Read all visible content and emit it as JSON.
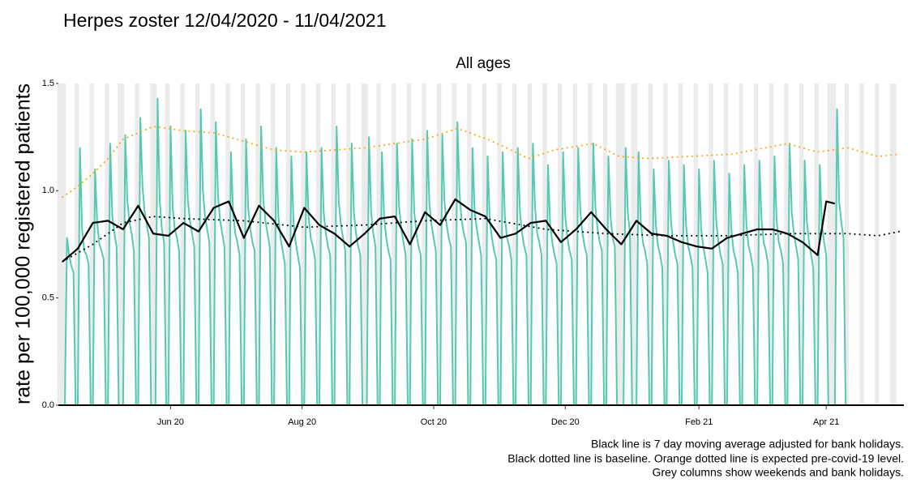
{
  "chart_data": {
    "type": "line",
    "title": "Herpes zoster 12/04/2020 - 11/04/2021",
    "subtitle": "All ages",
    "y_label": "rate per 100,000 registered patients",
    "notes": [
      "Black line is 7 day moving average adjusted for bank holidays.",
      "Black dotted line is baseline. Orange dotted line is expected pre-covid-19 level.",
      "Grey columns show weekends and bank holidays."
    ],
    "xlim": [
      -2,
      390
    ],
    "xticks": [
      {
        "value": 50,
        "label": "Jun 20"
      },
      {
        "value": 111,
        "label": "Aug 20"
      },
      {
        "value": 172,
        "label": "Oct 20"
      },
      {
        "value": 233,
        "label": "Dec 20"
      },
      {
        "value": 295,
        "label": "Feb 21"
      },
      {
        "value": 354,
        "label": "Apr 21"
      }
    ],
    "ylim": [
      0,
      1.5
    ],
    "yticks": [
      {
        "value": 0,
        "label": "0.0"
      },
      0.5,
      {
        "value": 1,
        "label": "1.0"
      },
      1.5
    ],
    "shaded_color": "#ebebeb",
    "shaded_days": [
      -2,
      -1,
      0,
      1,
      6,
      7,
      13,
      14,
      20,
      21,
      26,
      27,
      28,
      34,
      35,
      41,
      42,
      43,
      48,
      49,
      55,
      56,
      62,
      63,
      69,
      70,
      76,
      77,
      83,
      84,
      90,
      91,
      97,
      98,
      104,
      105,
      111,
      112,
      118,
      119,
      125,
      126,
      132,
      133,
      139,
      140,
      141,
      146,
      147,
      153,
      154,
      160,
      161,
      167,
      168,
      174,
      175,
      181,
      182,
      188,
      189,
      195,
      196,
      202,
      203,
      209,
      210,
      216,
      217,
      223,
      224,
      230,
      231,
      237,
      238,
      244,
      245,
      251,
      252,
      257,
      258,
      259,
      260,
      264,
      265,
      266,
      272,
      273,
      279,
      280,
      286,
      287,
      293,
      294,
      300,
      301,
      307,
      308,
      314,
      315,
      321,
      322,
      328,
      329,
      335,
      336,
      342,
      343,
      349,
      350,
      355,
      356,
      357,
      358,
      363,
      364,
      370,
      371,
      377,
      378,
      384,
      385,
      386
    ],
    "series": [
      {
        "color": "#56c9b3",
        "linestyle": "solid",
        "width": 2,
        "x": [
          0,
          1,
          2,
          3,
          4,
          5,
          6,
          7,
          8,
          9,
          10,
          11,
          12,
          13,
          14,
          15,
          16,
          17,
          18,
          19,
          20,
          21,
          22,
          23,
          24,
          25,
          26,
          27,
          28,
          29,
          30,
          31,
          32,
          33,
          34,
          35,
          36,
          37,
          38,
          39,
          40,
          41,
          42,
          43,
          44,
          45,
          46,
          47,
          48,
          49,
          50,
          51,
          52,
          53,
          54,
          55,
          56,
          57,
          58,
          59,
          60,
          61,
          62,
          63,
          64,
          65,
          66,
          67,
          68,
          69,
          70,
          71,
          72,
          73,
          74,
          75,
          76,
          77,
          78,
          79,
          80,
          81,
          82,
          83,
          84,
          85,
          86,
          87,
          88,
          89,
          90,
          91,
          92,
          93,
          94,
          95,
          96,
          97,
          98,
          99,
          100,
          101,
          102,
          103,
          104,
          105,
          106,
          107,
          108,
          109,
          110,
          111,
          112,
          113,
          114,
          115,
          116,
          117,
          118,
          119,
          120,
          121,
          122,
          123,
          124,
          125,
          126,
          127,
          128,
          129,
          130,
          131,
          132,
          133,
          134,
          135,
          136,
          137,
          138,
          139,
          140,
          141,
          142,
          143,
          144,
          145,
          146,
          147,
          148,
          149,
          150,
          151,
          152,
          153,
          154,
          155,
          156,
          157,
          158,
          159,
          160,
          161,
          162,
          163,
          164,
          165,
          166,
          167,
          168,
          169,
          170,
          171,
          172,
          173,
          174,
          175,
          176,
          177,
          178,
          179,
          180,
          181,
          182,
          183,
          184,
          185,
          186,
          187,
          188,
          189,
          190,
          191,
          192,
          193,
          194,
          195,
          196,
          197,
          198,
          199,
          200,
          201,
          202,
          203,
          204,
          205,
          206,
          207,
          208,
          209,
          210,
          211,
          212,
          213,
          214,
          215,
          216,
          217,
          218,
          219,
          220,
          221,
          222,
          223,
          224,
          225,
          226,
          227,
          228,
          229,
          230,
          231,
          232,
          233,
          234,
          235,
          236,
          237,
          238,
          239,
          240,
          241,
          242,
          243,
          244,
          245,
          246,
          247,
          248,
          249,
          250,
          251,
          252,
          253,
          254,
          255,
          256,
          257,
          258,
          259,
          260,
          261,
          262,
          263,
          264,
          265,
          266,
          267,
          268,
          269,
          270,
          271,
          272,
          273,
          274,
          275,
          276,
          277,
          278,
          279,
          280,
          281,
          282,
          283,
          284,
          285,
          286,
          287,
          288,
          289,
          290,
          291,
          292,
          293,
          294,
          295,
          296,
          297,
          298,
          299,
          300,
          301,
          302,
          303,
          304,
          305,
          306,
          307,
          308,
          309,
          310,
          311,
          312,
          313,
          314,
          315,
          316,
          317,
          318,
          319,
          320,
          321,
          322,
          323,
          324,
          325,
          326,
          327,
          328,
          329,
          330,
          331,
          332,
          333,
          334,
          335,
          336,
          337,
          338,
          339,
          340,
          341,
          342,
          343,
          344,
          345,
          346,
          347,
          348,
          349,
          350,
          351,
          352,
          353,
          354,
          355,
          356,
          357,
          358,
          359,
          360,
          361,
          362,
          363,
          364
        ],
        "values": [
          0,
          0,
          0.78,
          0.7,
          0.65,
          0.62,
          0,
          0,
          1.2,
          0.82,
          0.72,
          0.7,
          0.66,
          0,
          0,
          1.1,
          0.85,
          0.75,
          0.72,
          0.68,
          0,
          0,
          1.22,
          0.88,
          0.8,
          0.74,
          0,
          0,
          0,
          1.26,
          0.95,
          0.85,
          0.8,
          0.72,
          0,
          0,
          1.34,
          1.02,
          0.9,
          0.84,
          0.78,
          0,
          0,
          0,
          1.43,
          0.95,
          0.82,
          0.76,
          0,
          0,
          1.3,
          0.92,
          0.82,
          0.78,
          0.72,
          0,
          0,
          1.28,
          0.96,
          0.86,
          0.8,
          0.74,
          0,
          0,
          1.38,
          1.0,
          0.88,
          0.82,
          0.76,
          0,
          0,
          1.32,
          0.98,
          0.86,
          0.8,
          0.74,
          0,
          0,
          1.18,
          0.9,
          0.8,
          0.76,
          0.7,
          0,
          0,
          1.24,
          0.92,
          0.82,
          0.76,
          0.72,
          0,
          0,
          1.3,
          0.96,
          0.86,
          0.8,
          0.74,
          0,
          0,
          1.2,
          0.88,
          0.78,
          0.72,
          0.66,
          0,
          0,
          1.16,
          0.86,
          0.76,
          0.7,
          0.64,
          0,
          0,
          1.18,
          0.88,
          0.78,
          0.74,
          0.68,
          0,
          0,
          1.2,
          0.9,
          0.8,
          0.74,
          0.7,
          0,
          0,
          1.3,
          0.95,
          0.84,
          0.78,
          0.72,
          0,
          0,
          1.22,
          0.9,
          0.8,
          0.74,
          0.7,
          0,
          0,
          0,
          1.25,
          0.9,
          0.8,
          0.74,
          0,
          0,
          1.18,
          0.88,
          0.78,
          0.72,
          0.68,
          0,
          0,
          1.22,
          0.92,
          0.82,
          0.76,
          0.7,
          0,
          0,
          1.24,
          0.9,
          0.8,
          0.74,
          0.7,
          0,
          0,
          1.28,
          0.94,
          0.84,
          0.78,
          0.72,
          0,
          0,
          1.26,
          0.95,
          0.84,
          0.78,
          0.74,
          0,
          0,
          1.32,
          0.98,
          0.86,
          0.8,
          0.76,
          0,
          0,
          1.2,
          0.9,
          0.82,
          0.76,
          0.7,
          0,
          0,
          1.16,
          0.86,
          0.78,
          0.72,
          0.68,
          0,
          0,
          1.18,
          0.88,
          0.78,
          0.74,
          0.68,
          0,
          0,
          1.2,
          0.9,
          0.8,
          0.74,
          0.7,
          0,
          0,
          1.22,
          0.92,
          0.8,
          0.76,
          0.7,
          0,
          0,
          1.12,
          0.84,
          0.76,
          0.7,
          0.66,
          0,
          0,
          1.18,
          0.88,
          0.78,
          0.72,
          0.68,
          0,
          0,
          1.2,
          0.9,
          0.8,
          0.74,
          0.7,
          0,
          0,
          1.22,
          0.92,
          0.82,
          0.76,
          0.72,
          0,
          0,
          1.16,
          0.88,
          0.78,
          0.74,
          0,
          0,
          0,
          0,
          1.2,
          0.9,
          0.8,
          0,
          0,
          0,
          1.18,
          0.86,
          0.76,
          0.72,
          0.66,
          0,
          0,
          1.1,
          0.84,
          0.74,
          0.7,
          0.64,
          0,
          0,
          1.14,
          0.86,
          0.76,
          0.7,
          0.66,
          0,
          0,
          1.12,
          0.84,
          0.74,
          0.7,
          0.64,
          0,
          0,
          1.1,
          0.82,
          0.74,
          0.68,
          0.62,
          0,
          0,
          1.14,
          0.86,
          0.76,
          0.7,
          0.66,
          0,
          0,
          1.08,
          0.82,
          0.72,
          0.68,
          0.62,
          0,
          0,
          1.12,
          0.84,
          0.74,
          0.7,
          0.64,
          0,
          0,
          1.14,
          0.86,
          0.76,
          0.72,
          0.66,
          0,
          0,
          1.16,
          0.86,
          0.76,
          0.72,
          0.66,
          0,
          0,
          1.22,
          0.9,
          0.8,
          0.74,
          0.68,
          0,
          0,
          1.14,
          0.86,
          0.76,
          0.7,
          0.64,
          0,
          0,
          1.12,
          0.84,
          0.76,
          0.7,
          0,
          0,
          0,
          0,
          1.38,
          0.95,
          0.85,
          0.78,
          0,
          0
        ]
      },
      {
        "color": "#ffa500",
        "linestyle": "dotted",
        "width": 2,
        "x": [
          0,
          7,
          14,
          21,
          28,
          35,
          42,
          56,
          70,
          84,
          98,
          112,
          126,
          140,
          154,
          168,
          183,
          197,
          210,
          216,
          228,
          246,
          258,
          272,
          290,
          310,
          336,
          350,
          364,
          378,
          388
        ],
        "values": [
          0.97,
          1.02,
          1.08,
          1.15,
          1.24,
          1.27,
          1.3,
          1.28,
          1.27,
          1.23,
          1.19,
          1.18,
          1.19,
          1.2,
          1.22,
          1.24,
          1.29,
          1.24,
          1.18,
          1.15,
          1.19,
          1.22,
          1.16,
          1.15,
          1.16,
          1.17,
          1.22,
          1.18,
          1.2,
          1.16,
          1.17
        ]
      },
      {
        "color": "#000000",
        "linestyle": "dotted",
        "width": 2,
        "x": [
          0,
          14,
          28,
          42,
          56,
          84,
          112,
          140,
          168,
          196,
          224,
          252,
          280,
          308,
          336,
          364,
          378,
          388
        ],
        "values": [
          0.67,
          0.75,
          0.85,
          0.88,
          0.87,
          0.86,
          0.83,
          0.84,
          0.86,
          0.87,
          0.82,
          0.8,
          0.79,
          0.79,
          0.8,
          0.8,
          0.79,
          0.81
        ]
      },
      {
        "color": "#000000",
        "linestyle": "solid",
        "width": 2.2,
        "x": [
          0,
          7,
          14,
          21,
          28,
          35,
          42,
          49,
          56,
          63,
          70,
          77,
          84,
          91,
          98,
          105,
          112,
          119,
          126,
          133,
          140,
          147,
          154,
          161,
          168,
          175,
          182,
          189,
          196,
          203,
          210,
          217,
          224,
          231,
          238,
          245,
          252,
          259,
          266,
          273,
          280,
          287,
          294,
          301,
          308,
          315,
          322,
          329,
          336,
          343,
          350,
          354,
          358
        ],
        "values": [
          0.67,
          0.73,
          0.85,
          0.86,
          0.82,
          0.93,
          0.8,
          0.79,
          0.85,
          0.81,
          0.92,
          0.95,
          0.78,
          0.93,
          0.86,
          0.74,
          0.92,
          0.84,
          0.8,
          0.74,
          0.8,
          0.87,
          0.88,
          0.75,
          0.9,
          0.84,
          0.96,
          0.91,
          0.88,
          0.78,
          0.8,
          0.85,
          0.86,
          0.76,
          0.82,
          0.9,
          0.82,
          0.75,
          0.86,
          0.8,
          0.79,
          0.76,
          0.74,
          0.73,
          0.78,
          0.8,
          0.82,
          0.82,
          0.8,
          0.76,
          0.7,
          0.95,
          0.94
        ]
      }
    ]
  }
}
